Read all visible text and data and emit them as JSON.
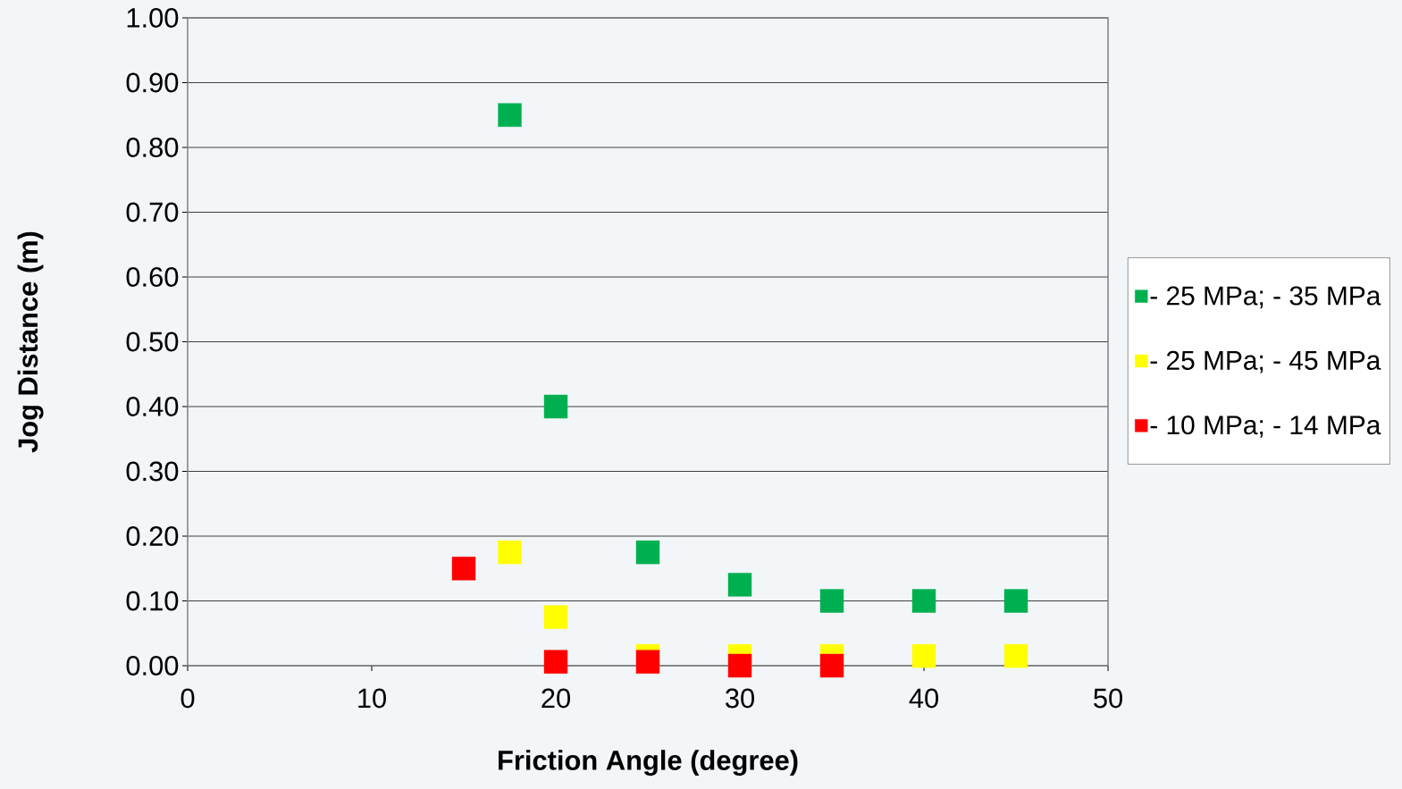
{
  "chart_data": {
    "type": "scatter",
    "xlabel": "Friction Angle (degree)",
    "ylabel": "Jog Distance (m)",
    "xlim": [
      0,
      50
    ],
    "xticks": [
      0,
      10,
      20,
      30,
      40,
      50
    ],
    "ylim": [
      0,
      1
    ],
    "yticks": [
      {
        "value": 0,
        "label": "0.00"
      },
      {
        "value": 0.1,
        "label": "0.10"
      },
      {
        "value": 0.2,
        "label": "0.20"
      },
      {
        "value": 0.3,
        "label": "0.30"
      },
      {
        "value": 0.4,
        "label": "0.40"
      },
      {
        "value": 0.5,
        "label": "0.50"
      },
      {
        "value": 0.6,
        "label": "0.60"
      },
      {
        "value": 0.7,
        "label": "0.70"
      },
      {
        "value": 0.8,
        "label": "0.80"
      },
      {
        "value": 0.9,
        "label": "0.90"
      },
      {
        "value": 1,
        "label": "1.00"
      }
    ],
    "grid": "y",
    "legend": "right",
    "marker": "square",
    "series": [
      {
        "name": "- 25 MPa; - 35 MPa",
        "color": "#00b050",
        "x": [
          17.5,
          20,
          25,
          30,
          35,
          40,
          45
        ],
        "values": [
          0.85,
          0.4,
          0.175,
          0.125,
          0.1,
          0.1,
          0.1
        ]
      },
      {
        "name": "- 25 MPa; - 45 MPa",
        "color": "#ffff00",
        "x": [
          17.5,
          20,
          25,
          30,
          35,
          40,
          45
        ],
        "values": [
          0.175,
          0.075,
          0.015,
          0.015,
          0.015,
          0.015,
          0.015
        ]
      },
      {
        "name": "- 10 MPa; - 14 MPa",
        "color": "#ff0000",
        "x": [
          15,
          20,
          25,
          30,
          35
        ],
        "values": [
          0.15,
          0.006,
          0.006,
          0,
          0
        ]
      }
    ]
  }
}
